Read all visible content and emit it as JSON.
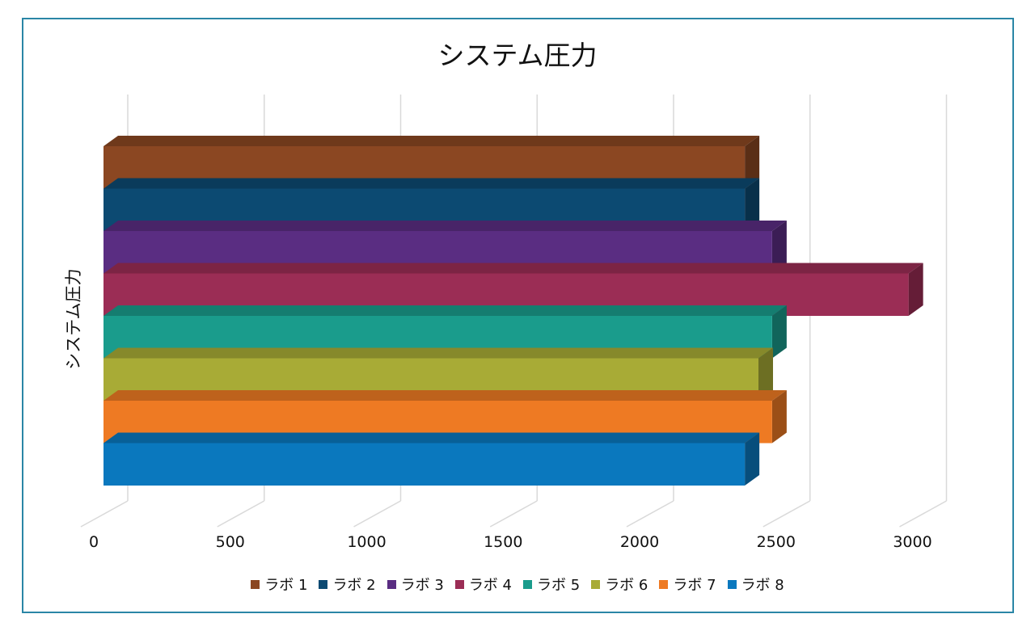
{
  "chart_data": {
    "type": "bar",
    "orientation": "horizontal",
    "title": "システム圧力",
    "ylabel": "システム圧力",
    "xlabel": "",
    "xlim": [
      0,
      3000
    ],
    "xticks": [
      "0",
      "500",
      "1000",
      "1500",
      "2000",
      "2500",
      "3000"
    ],
    "grid": true,
    "legend_position": "bottom",
    "series": [
      {
        "name": "ラボ 1",
        "value": 2350,
        "color": "#8B4722"
      },
      {
        "name": "ラボ 2",
        "value": 2350,
        "color": "#0C4A72"
      },
      {
        "name": "ラボ 3",
        "value": 2450,
        "color": "#5A2D82"
      },
      {
        "name": "ラボ 4",
        "value": 2950,
        "color": "#9B2D55"
      },
      {
        "name": "ラボ 5",
        "value": 2450,
        "color": "#1A9C8C"
      },
      {
        "name": "ラボ 6",
        "value": 2400,
        "color": "#A8AB36"
      },
      {
        "name": "ラボ 7",
        "value": 2450,
        "color": "#EE7A23"
      },
      {
        "name": "ラボ 8",
        "value": 2350,
        "color": "#0A78BE"
      }
    ]
  }
}
